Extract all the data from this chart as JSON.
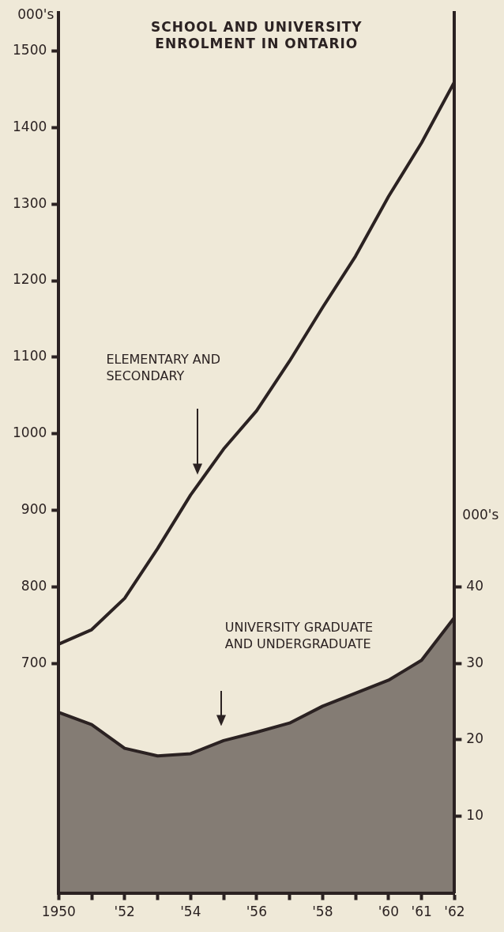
{
  "chart_data": {
    "type": "line",
    "title": "SCHOOL AND UNIVERSITY ENROLMENT IN ONTARIO",
    "ylabel": "000's",
    "y2label": "000's",
    "x": [
      1950,
      1951,
      1952,
      1953,
      1954,
      1955,
      1956,
      1957,
      1958,
      1959,
      1960,
      1961,
      1962
    ],
    "series": [
      {
        "color": "#2b2222",
        "values": [
          725,
          744,
          785,
          850,
          920,
          980,
          1030,
          1095,
          1165,
          1232,
          1310,
          1380,
          1460
        ]
      },
      {
        "type": "area",
        "axis": "y2",
        "color": "#2b2222",
        "values": [
          23.6,
          22.0,
          18.9,
          17.9,
          18.2,
          19.9,
          21.0,
          22.2,
          24.4,
          26.1,
          27.8,
          30.4,
          36
        ]
      }
    ],
    "xlim": [
      1950,
      1962
    ],
    "xticks": [
      1950,
      {
        "value": 1951,
        "label": null
      },
      {
        "value": 1952,
        "label": "'52"
      },
      {
        "value": 1953,
        "label": null
      },
      {
        "value": 1954,
        "label": "'54"
      },
      {
        "value": 1955,
        "label": null
      },
      {
        "value": 1956,
        "label": "'56"
      },
      {
        "value": 1957,
        "label": null
      },
      {
        "value": 1958,
        "label": "'58"
      },
      {
        "value": 1959,
        "label": null
      },
      {
        "value": 1960,
        "label": "'60"
      },
      {
        "value": 1961,
        "label": "'61"
      },
      {
        "value": 1962,
        "label": "'62"
      }
    ],
    "ylim": [
      400,
      1550
    ],
    "yticks": [
      700,
      800,
      900,
      1000,
      1100,
      1200,
      1300,
      1400,
      1500
    ],
    "y2lim": [
      0,
      115
    ],
    "y2ticks": [
      10,
      20,
      30,
      40
    ],
    "annotations": [
      "ELEMENTARY AND SECONDARY",
      "UNIVERSITY GRADUATE AND UNDERGRADUATE"
    ],
    "grid": false,
    "legend": false,
    "marker": "none",
    "line_style": "solid"
  }
}
